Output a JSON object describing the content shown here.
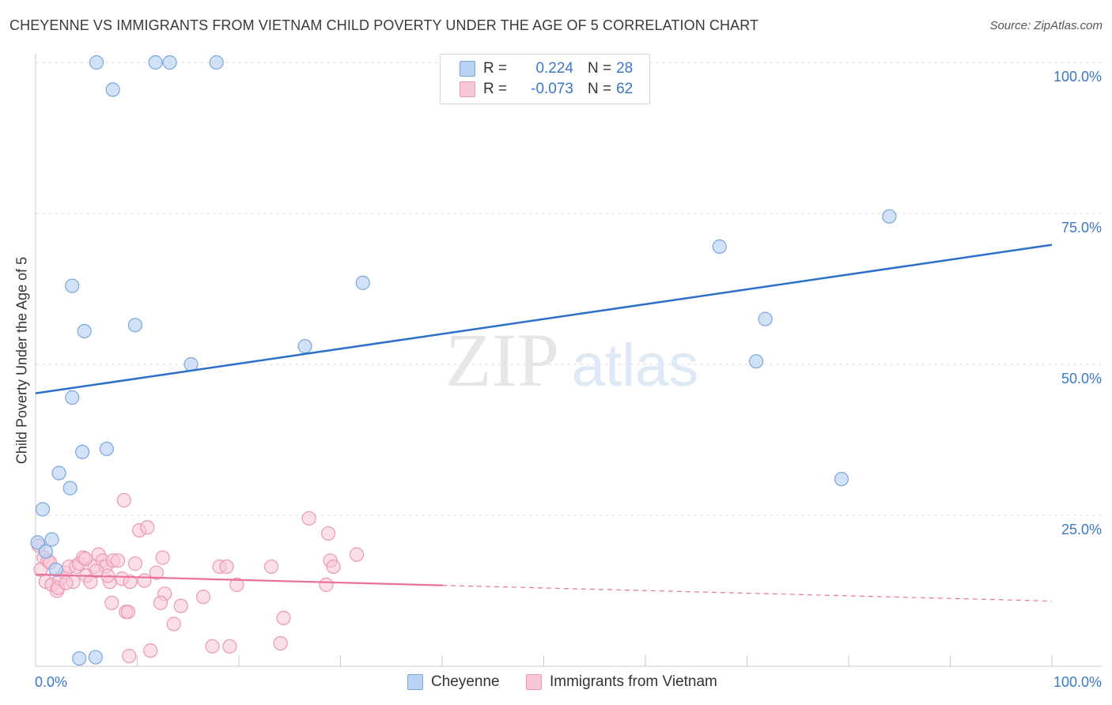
{
  "header": {
    "title": "CHEYENNE VS IMMIGRANTS FROM VIETNAM CHILD POVERTY UNDER THE AGE OF 5 CORRELATION CHART",
    "source": "Source: ZipAtlas.com"
  },
  "watermark": {
    "zip": "ZIP",
    "atlas": "atlas"
  },
  "legend_top": {
    "rows": [
      {
        "r_label": "R =",
        "r_value": "0.224",
        "n_label": "N =",
        "n_value": "28"
      },
      {
        "r_label": "R =",
        "r_value": "-0.073",
        "n_label": "N =",
        "n_value": "62"
      }
    ]
  },
  "legend_bottom": {
    "items": [
      "Cheyenne",
      "Immigrants from Vietnam"
    ]
  },
  "colors": {
    "blue_fill": "#b9d3f2",
    "blue_stroke": "#7aa6dc",
    "blue_line": "#2c6fc9",
    "pink_fill": "#f8c6d6",
    "pink_stroke": "#ec97b3",
    "pink_line": "#e9729b",
    "grid": "#dedede",
    "axis": "#c8c8c8",
    "tick_text": "#3b78c6"
  },
  "chart_data": {
    "type": "scatter",
    "title": "CHEYENNE VS IMMIGRANTS FROM VIETNAM CHILD POVERTY UNDER THE AGE OF 5 CORRELATION CHART",
    "xlabel": "",
    "ylabel": "Child Poverty Under the Age of 5",
    "xlim": [
      0,
      100
    ],
    "ylim": [
      0,
      100
    ],
    "x_tick_labels": [
      "0.0%",
      "100.0%"
    ],
    "y_ticks": [
      25,
      50,
      75,
      100
    ],
    "y_tick_labels": [
      "25.0%",
      "50.0%",
      "75.0%",
      "100.0%"
    ],
    "grid": true,
    "series": [
      {
        "name": "Cheyenne",
        "color": "#7aa6dc",
        "r": 0.224,
        "n": 28,
        "points": [
          [
            6,
            100
          ],
          [
            11.8,
            100
          ],
          [
            13.2,
            100
          ],
          [
            17.8,
            100
          ],
          [
            7.6,
            95.5
          ],
          [
            3.6,
            63
          ],
          [
            4.8,
            55.5
          ],
          [
            9.8,
            56.5
          ],
          [
            15.3,
            50
          ],
          [
            26.5,
            53
          ],
          [
            32.2,
            63.5
          ],
          [
            3.6,
            44.5
          ],
          [
            4.6,
            35.5
          ],
          [
            7,
            36
          ],
          [
            2.3,
            32
          ],
          [
            3.4,
            29.5
          ],
          [
            0.7,
            26
          ],
          [
            0.2,
            20.5
          ],
          [
            1.6,
            21
          ],
          [
            1.0,
            19
          ],
          [
            2.0,
            16
          ],
          [
            84,
            74.5
          ],
          [
            67.3,
            69.5
          ],
          [
            71.8,
            57.5
          ],
          [
            70.9,
            50.5
          ],
          [
            79.3,
            31
          ],
          [
            4.3,
            1.3
          ],
          [
            5.9,
            1.5
          ]
        ],
        "trend": {
          "x": [
            0,
            100
          ],
          "y": [
            45.2,
            69.8
          ],
          "style": "solid"
        }
      },
      {
        "name": "Immigrants from Vietnam",
        "color": "#ec97b3",
        "r": -0.073,
        "n": 62,
        "points": [
          [
            0.3,
            20
          ],
          [
            0.8,
            18
          ],
          [
            0.5,
            16
          ],
          [
            1.2,
            17.5
          ],
          [
            1.0,
            14
          ],
          [
            1.6,
            13.5
          ],
          [
            2.1,
            12.5
          ],
          [
            2.4,
            14.5
          ],
          [
            2.9,
            15.5
          ],
          [
            3.3,
            16.5
          ],
          [
            3.7,
            14
          ],
          [
            4.0,
            16.5
          ],
          [
            4.3,
            17
          ],
          [
            4.7,
            18
          ],
          [
            5.0,
            15
          ],
          [
            5.4,
            14
          ],
          [
            5.8,
            16.5
          ],
          [
            6.2,
            18.5
          ],
          [
            6.6,
            17.5
          ],
          [
            6.9,
            16.5
          ],
          [
            7.3,
            14
          ],
          [
            7.6,
            17.5
          ],
          [
            7.1,
            15
          ],
          [
            8.1,
            17.5
          ],
          [
            8.5,
            14.5
          ],
          [
            8.9,
            9
          ],
          [
            9.3,
            14
          ],
          [
            9.8,
            17
          ],
          [
            7.5,
            10.5
          ],
          [
            8.7,
            27.5
          ],
          [
            10.2,
            22.5
          ],
          [
            11.0,
            23
          ],
          [
            12.7,
            12
          ],
          [
            12.3,
            10.5
          ],
          [
            14.3,
            10
          ],
          [
            13.6,
            7
          ],
          [
            11.9,
            15.5
          ],
          [
            12.5,
            18
          ],
          [
            16.5,
            11.5
          ],
          [
            18.1,
            16.5
          ],
          [
            18.8,
            16.5
          ],
          [
            19.8,
            13.5
          ],
          [
            23.2,
            16.5
          ],
          [
            24.4,
            8
          ],
          [
            26.9,
            24.5
          ],
          [
            28.8,
            22
          ],
          [
            29.0,
            17.5
          ],
          [
            29.3,
            16.5
          ],
          [
            28.6,
            13.5
          ],
          [
            31.6,
            18.5
          ],
          [
            9.1,
            9
          ],
          [
            9.2,
            1.7
          ],
          [
            11.3,
            2.6
          ],
          [
            17.4,
            3.3
          ],
          [
            19.1,
            3.3
          ],
          [
            24.1,
            3.8
          ],
          [
            2.2,
            13
          ],
          [
            3.0,
            13.8
          ],
          [
            10.7,
            14.2
          ],
          [
            1.4,
            17.2
          ],
          [
            4.9,
            17.8
          ],
          [
            6.0,
            15.8
          ]
        ],
        "trend_solid": {
          "x": [
            0,
            40
          ],
          "y": [
            15.2,
            13.4
          ],
          "style": "solid"
        },
        "trend_dashed": {
          "x": [
            40,
            100
          ],
          "y": [
            13.4,
            10.8
          ],
          "style": "dashed"
        }
      }
    ]
  }
}
